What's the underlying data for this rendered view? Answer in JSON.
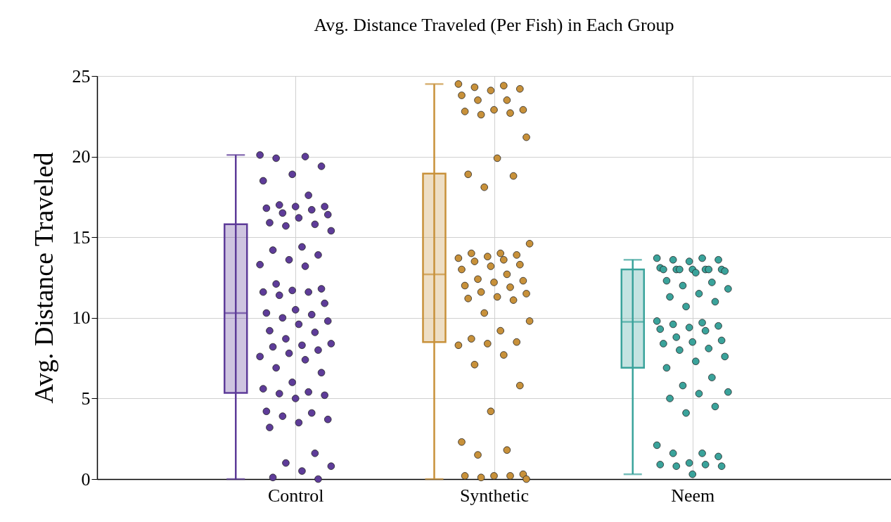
{
  "chart_data": {
    "type": "box",
    "title": "Avg. Distance Traveled (Per Fish) in Each Group",
    "ylabel": "Avg. Distance Traveled",
    "categories": [
      "Control",
      "Synthetic",
      "Neem"
    ],
    "colors": [
      "#5e3c99",
      "#c8913a",
      "#3aa39b"
    ],
    "boxes": [
      {
        "low": 0,
        "q1": 5.35,
        "median": 10.3,
        "q3": 15.8,
        "high": 20.1
      },
      {
        "low": 0,
        "q1": 8.5,
        "median": 12.7,
        "q3": 18.95,
        "high": 24.5
      },
      {
        "low": 0.3,
        "q1": 6.9,
        "median": 9.75,
        "q3": 13.0,
        "high": 13.6
      }
    ],
    "ylim": [
      0,
      25
    ],
    "yticks": [
      0,
      5,
      10,
      15,
      20,
      25
    ],
    "grid": true,
    "series": [
      {
        "type": "scatter",
        "color": "#5e3c99",
        "x": [
          "Control",
          "Control",
          "Control",
          "Control",
          "Control",
          "Control",
          "Control",
          "Control",
          "Control",
          "Control",
          "Control",
          "Control",
          "Control",
          "Control",
          "Control",
          "Control",
          "Control",
          "Control",
          "Control",
          "Control",
          "Control",
          "Control",
          "Control",
          "Control",
          "Control",
          "Control",
          "Control",
          "Control",
          "Control",
          "Control",
          "Control",
          "Control",
          "Control",
          "Control",
          "Control",
          "Control",
          "Control",
          "Control",
          "Control",
          "Control",
          "Control",
          "Control",
          "Control",
          "Control",
          "Control",
          "Control",
          "Control",
          "Control",
          "Control",
          "Control",
          "Control",
          "Control",
          "Control",
          "Control",
          "Control",
          "Control",
          "Control",
          "Control",
          "Control",
          "Control",
          "Control",
          "Control",
          "Control",
          "Control",
          "Control",
          "Control",
          "Control",
          "Control"
        ],
        "values": [
          20.1,
          20.0,
          19.9,
          19.4,
          18.9,
          18.5,
          17.6,
          17.0,
          16.9,
          16.9,
          16.8,
          16.7,
          16.5,
          16.4,
          16.2,
          15.9,
          15.8,
          15.7,
          15.4,
          14.4,
          14.2,
          13.9,
          13.6,
          13.3,
          13.2,
          12.1,
          11.8,
          11.7,
          11.6,
          11.6,
          11.4,
          10.9,
          10.5,
          10.3,
          10.2,
          10.0,
          9.8,
          9.6,
          9.2,
          9.1,
          8.7,
          8.4,
          8.3,
          8.2,
          8.0,
          7.8,
          7.6,
          7.4,
          6.9,
          6.6,
          6.0,
          5.6,
          5.4,
          5.3,
          5.2,
          5.0,
          4.2,
          4.1,
          3.9,
          3.7,
          3.5,
          3.2,
          1.6,
          1.0,
          0.8,
          0.5,
          0.1,
          0.0
        ]
      },
      {
        "type": "scatter",
        "color": "#c8913a",
        "x": [
          "Synthetic",
          "Synthetic",
          "Synthetic",
          "Synthetic",
          "Synthetic",
          "Synthetic",
          "Synthetic",
          "Synthetic",
          "Synthetic",
          "Synthetic",
          "Synthetic",
          "Synthetic",
          "Synthetic",
          "Synthetic",
          "Synthetic",
          "Synthetic",
          "Synthetic",
          "Synthetic",
          "Synthetic",
          "Synthetic",
          "Synthetic",
          "Synthetic",
          "Synthetic",
          "Synthetic",
          "Synthetic",
          "Synthetic",
          "Synthetic",
          "Synthetic",
          "Synthetic",
          "Synthetic",
          "Synthetic",
          "Synthetic",
          "Synthetic",
          "Synthetic",
          "Synthetic",
          "Synthetic",
          "Synthetic",
          "Synthetic",
          "Synthetic",
          "Synthetic",
          "Synthetic",
          "Synthetic",
          "Synthetic",
          "Synthetic",
          "Synthetic",
          "Synthetic",
          "Synthetic",
          "Synthetic",
          "Synthetic",
          "Synthetic",
          "Synthetic",
          "Synthetic",
          "Synthetic",
          "Synthetic",
          "Synthetic",
          "Synthetic",
          "Synthetic",
          "Synthetic",
          "Synthetic",
          "Synthetic"
        ],
        "values": [
          24.5,
          24.4,
          24.3,
          24.2,
          24.1,
          23.8,
          23.5,
          23.5,
          22.9,
          22.9,
          22.8,
          22.7,
          22.6,
          21.2,
          19.9,
          18.9,
          18.8,
          18.1,
          14.6,
          14.0,
          14.0,
          13.9,
          13.8,
          13.7,
          13.6,
          13.5,
          13.3,
          13.2,
          13.0,
          12.7,
          12.4,
          12.3,
          12.2,
          12.0,
          11.9,
          11.6,
          11.5,
          11.3,
          11.2,
          11.1,
          10.3,
          9.8,
          9.2,
          8.7,
          8.5,
          8.4,
          8.3,
          7.7,
          7.1,
          5.8,
          4.2,
          2.3,
          1.8,
          1.5,
          0.3,
          0.2,
          0.2,
          0.2,
          0.1,
          0.0
        ]
      },
      {
        "type": "scatter",
        "color": "#3aa39b",
        "x": [
          "Neem",
          "Neem",
          "Neem",
          "Neem",
          "Neem",
          "Neem",
          "Neem",
          "Neem",
          "Neem",
          "Neem",
          "Neem",
          "Neem",
          "Neem",
          "Neem",
          "Neem",
          "Neem",
          "Neem",
          "Neem",
          "Neem",
          "Neem",
          "Neem",
          "Neem",
          "Neem",
          "Neem",
          "Neem",
          "Neem",
          "Neem",
          "Neem",
          "Neem",
          "Neem",
          "Neem",
          "Neem",
          "Neem",
          "Neem",
          "Neem",
          "Neem",
          "Neem",
          "Neem",
          "Neem",
          "Neem",
          "Neem",
          "Neem",
          "Neem",
          "Neem",
          "Neem",
          "Neem",
          "Neem",
          "Neem",
          "Neem",
          "Neem",
          "Neem",
          "Neem",
          "Neem",
          "Neem",
          "Neem",
          "Neem"
        ],
        "values": [
          13.7,
          13.7,
          13.6,
          13.6,
          13.5,
          13.1,
          13.0,
          13.0,
          13.0,
          13.0,
          13.0,
          13.0,
          13.0,
          12.9,
          12.8,
          12.3,
          12.2,
          12.0,
          11.8,
          11.5,
          11.3,
          11.0,
          10.7,
          9.8,
          9.7,
          9.6,
          9.5,
          9.4,
          9.3,
          9.2,
          8.8,
          8.6,
          8.5,
          8.4,
          8.1,
          8.0,
          7.6,
          7.3,
          6.9,
          6.3,
          5.8,
          5.4,
          5.3,
          5.0,
          4.5,
          4.1,
          2.1,
          1.6,
          1.6,
          1.4,
          1.0,
          0.9,
          0.9,
          0.8,
          0.8,
          0.3
        ]
      }
    ]
  }
}
